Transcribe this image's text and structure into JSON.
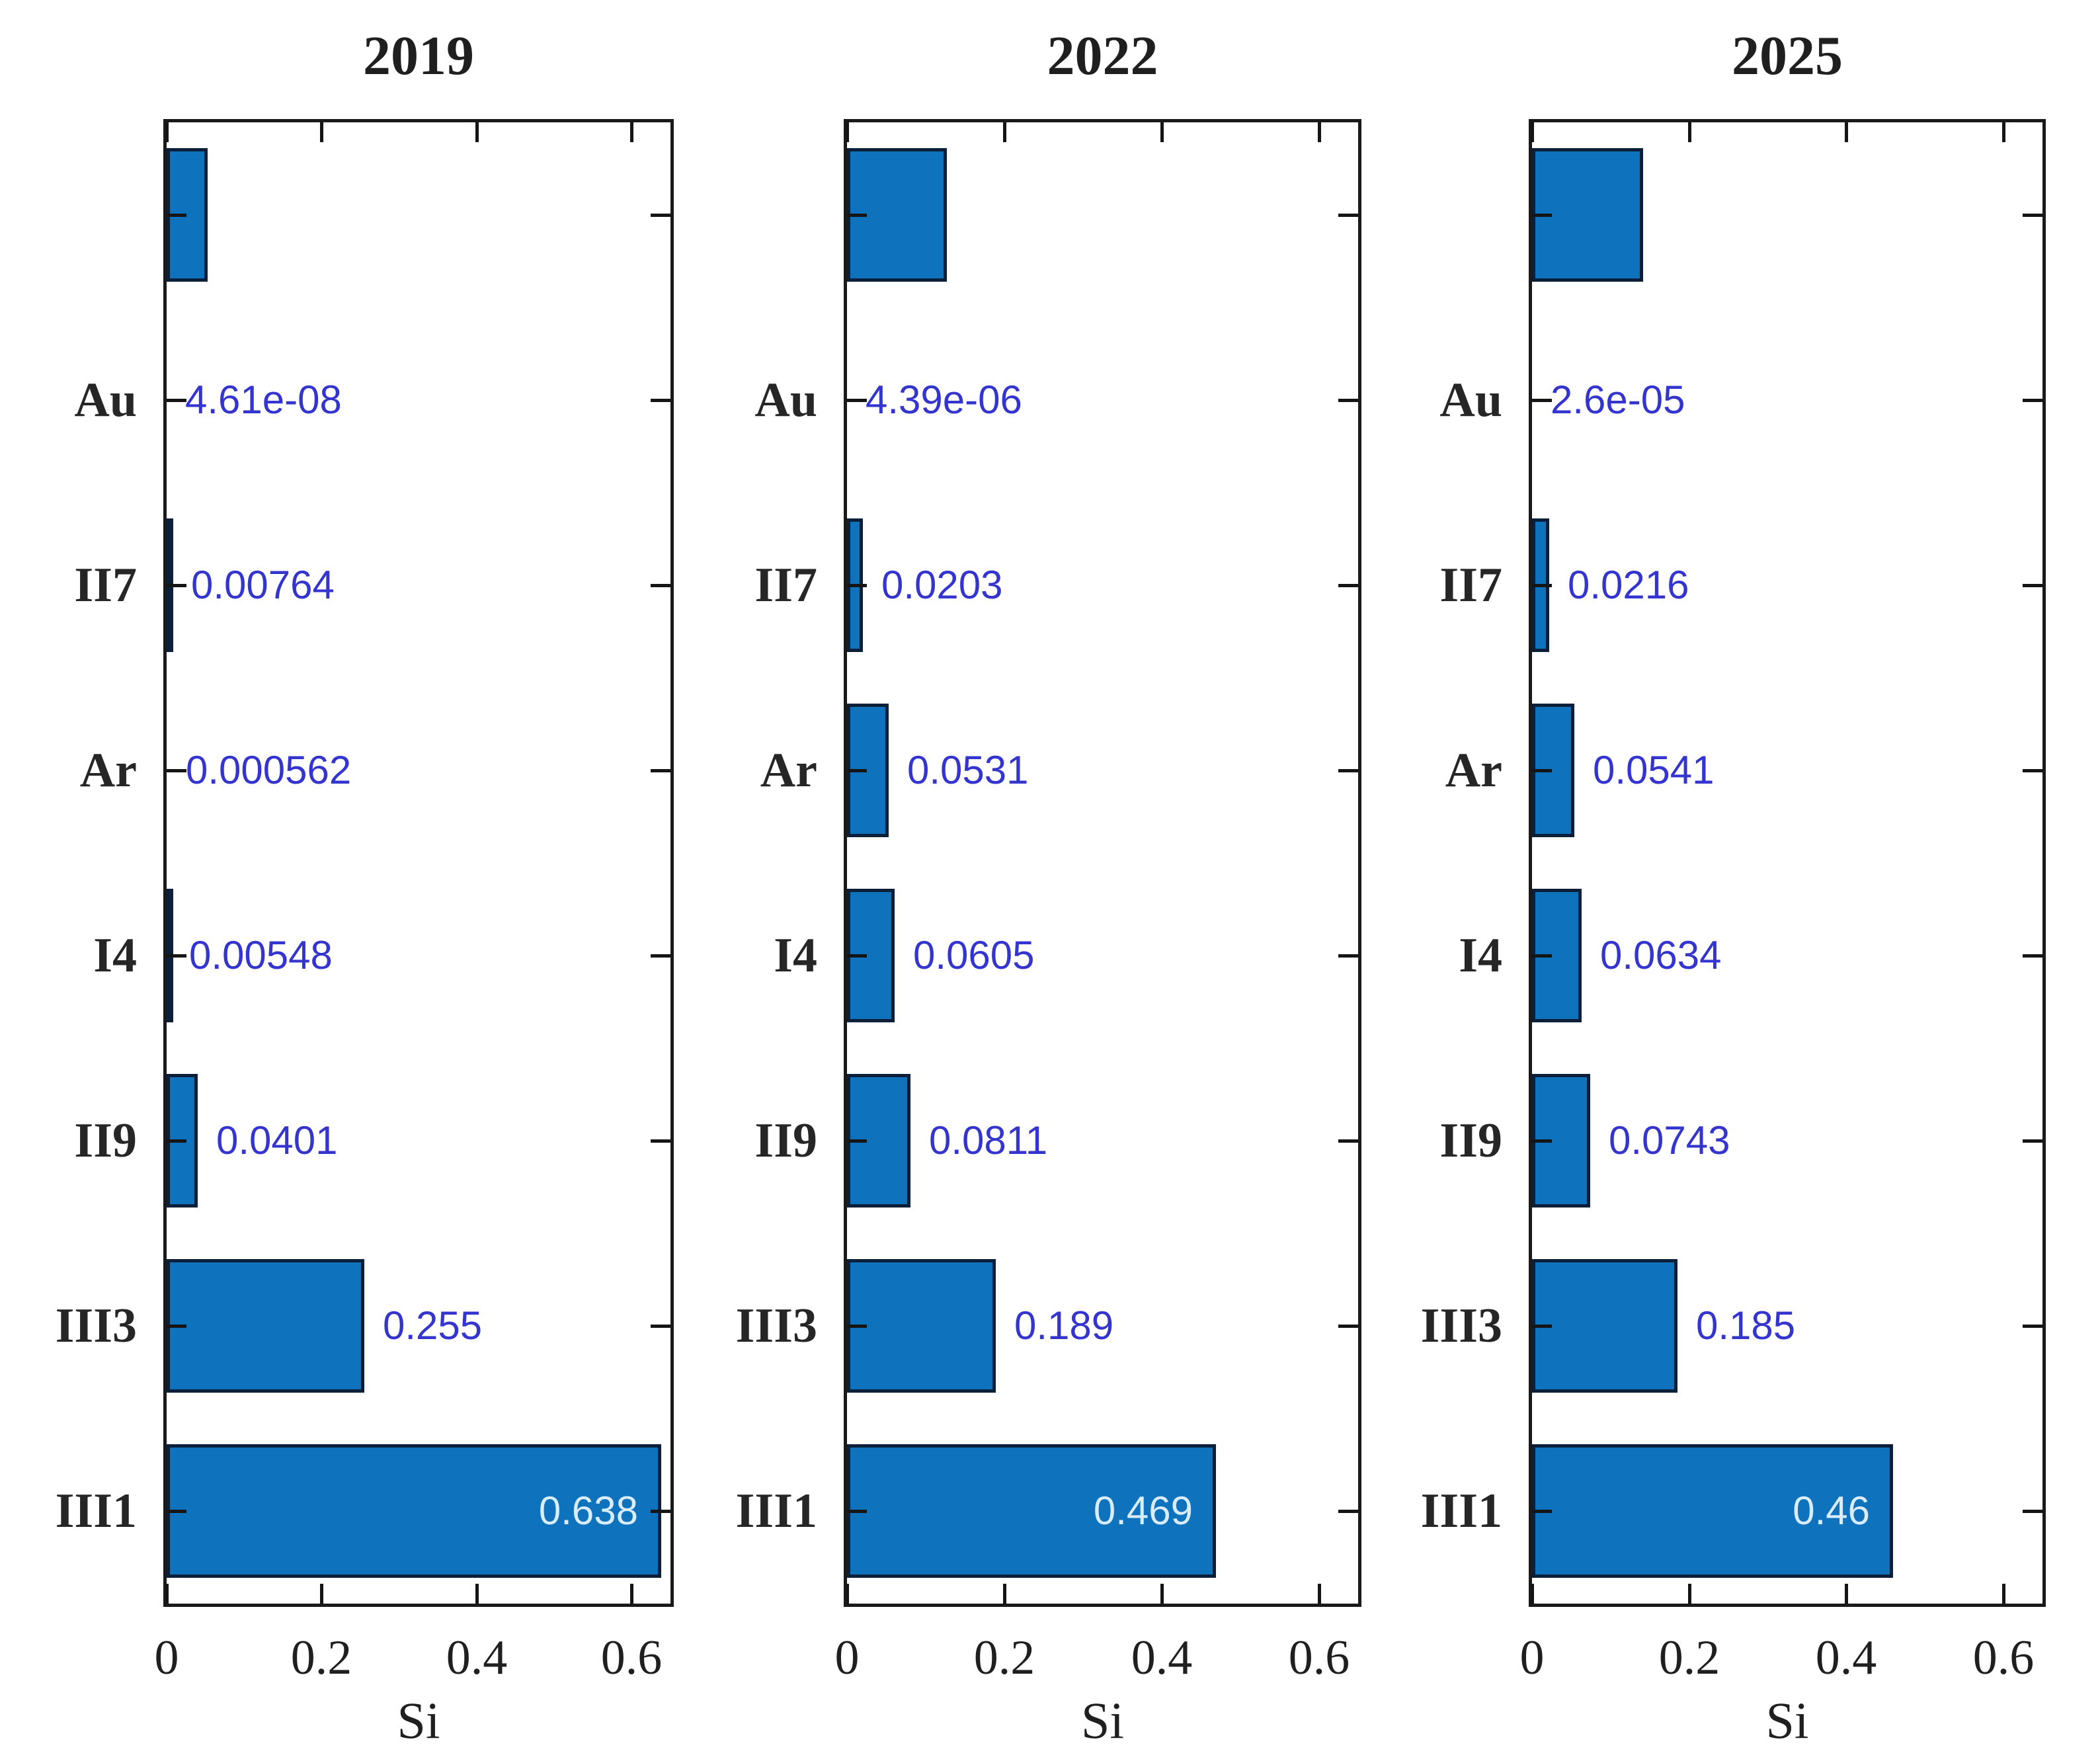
{
  "figure": {
    "background": "#ffffff",
    "bar_fill": "#0e72bd",
    "bar_edge": "#0c1f38",
    "axis_color": "#1a1a1a",
    "text_color": "#1f1f1f",
    "value_label_color": "#3434cf",
    "inside_label_color": "#d8ecf9"
  },
  "chart_data": [
    {
      "type": "bar",
      "orientation": "horizontal",
      "title": "2019",
      "xlabel": "Si",
      "xlim": [
        0,
        0.65
      ],
      "xticks": [
        0,
        0.2,
        0.4,
        0.6
      ],
      "xtick_labels": [
        "0",
        "0.2",
        "0.4",
        "0.6"
      ],
      "grid": false,
      "categories_top_to_bottom": [
        "",
        "Au",
        "II7",
        "Ar",
        "I4",
        "II9",
        "III3",
        "III1"
      ],
      "values_top_to_bottom": [
        0.0533,
        4.61e-08,
        0.00764,
        0.000562,
        0.00548,
        0.0401,
        0.255,
        0.638
      ],
      "value_labels_top_to_bottom": [
        "",
        "4.61e-08",
        "0.00764",
        "0.000562",
        "0.00548",
        "0.0401",
        "0.255",
        "0.638"
      ],
      "inside_label_index": 7
    },
    {
      "type": "bar",
      "orientation": "horizontal",
      "title": "2022",
      "xlabel": "Si",
      "xlim": [
        0,
        0.65
      ],
      "xticks": [
        0,
        0.2,
        0.4,
        0.6
      ],
      "xtick_labels": [
        "0",
        "0.2",
        "0.4",
        "0.6"
      ],
      "grid": false,
      "categories_top_to_bottom": [
        "",
        "Au",
        "II7",
        "Ar",
        "I4",
        "II9",
        "III3",
        "III1"
      ],
      "values_top_to_bottom": [
        0.127,
        4.39e-06,
        0.0203,
        0.0531,
        0.0605,
        0.0811,
        0.189,
        0.469
      ],
      "value_labels_top_to_bottom": [
        "",
        "4.39e-06",
        "0.0203",
        "0.0531",
        "0.0605",
        "0.0811",
        "0.189",
        "0.469"
      ],
      "inside_label_index": 7
    },
    {
      "type": "bar",
      "orientation": "horizontal",
      "title": "2025",
      "xlabel": "Si",
      "xlim": [
        0,
        0.65
      ],
      "xticks": [
        0,
        0.2,
        0.4,
        0.6
      ],
      "xtick_labels": [
        "0",
        "0.2",
        "0.4",
        "0.6"
      ],
      "grid": false,
      "categories_top_to_bottom": [
        "",
        "Au",
        "II7",
        "Ar",
        "I4",
        "II9",
        "III3",
        "III1"
      ],
      "values_top_to_bottom": [
        0.1415,
        2.6e-05,
        0.0216,
        0.0541,
        0.0634,
        0.0743,
        0.185,
        0.46
      ],
      "value_labels_top_to_bottom": [
        "",
        "2.6e-05",
        "0.0216",
        "0.0541",
        "0.0634",
        "0.0743",
        "0.185",
        "0.46"
      ],
      "inside_label_index": 7
    }
  ]
}
